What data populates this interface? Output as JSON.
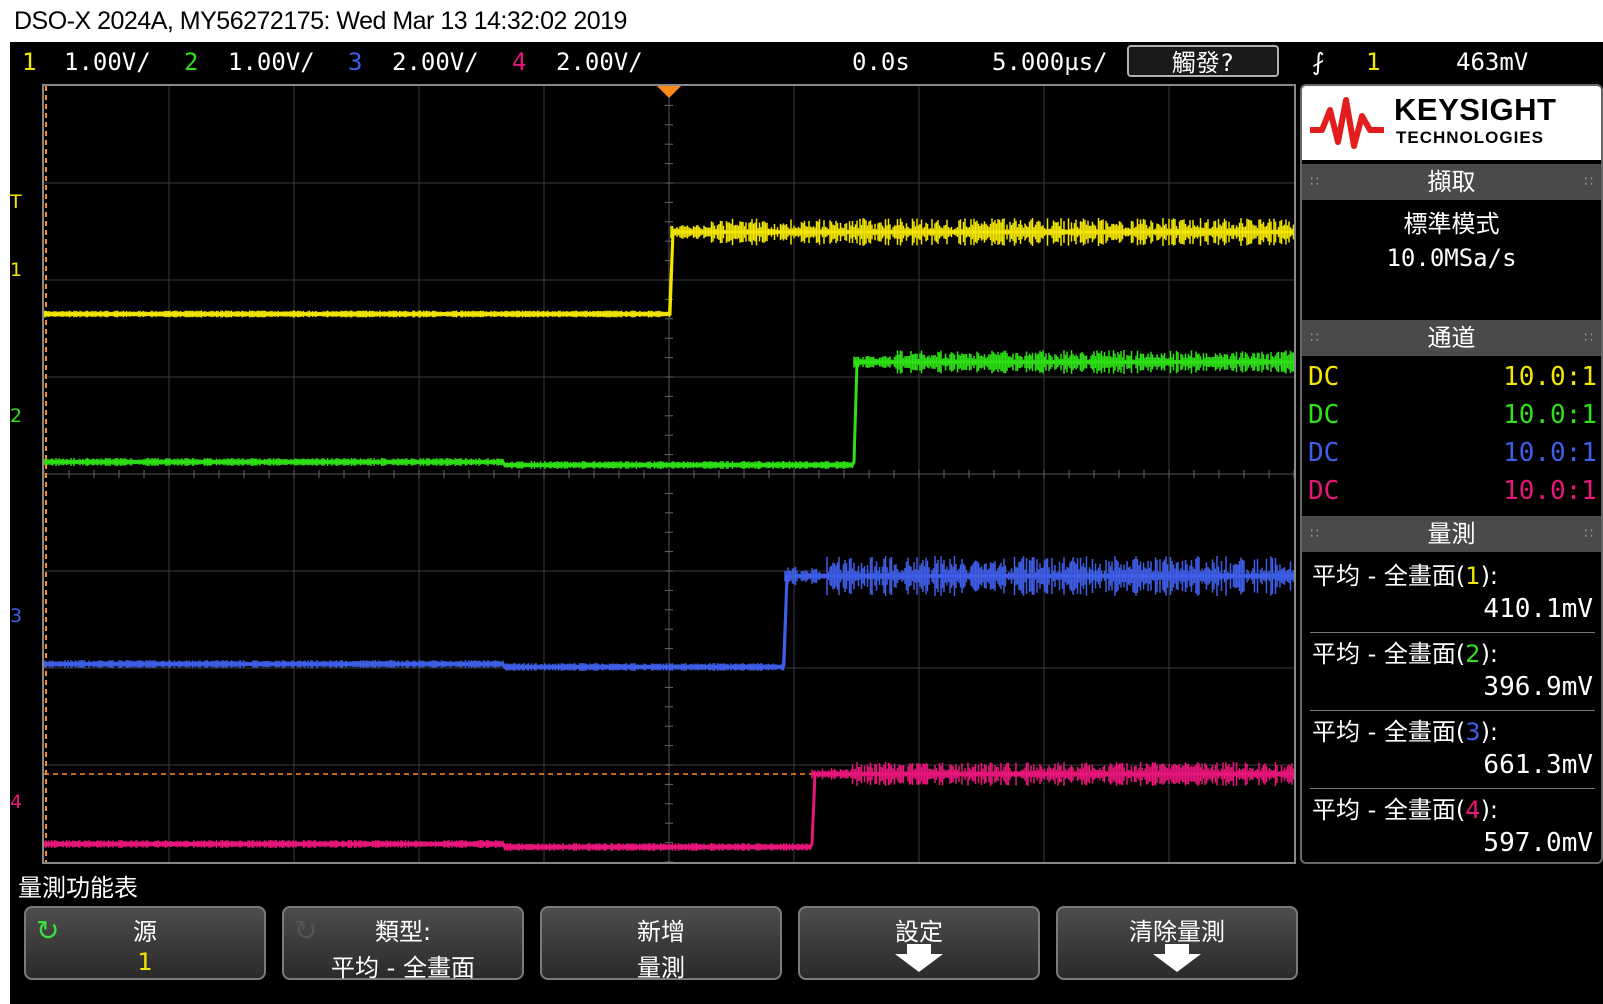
{
  "title": "DSO-X 2024A, MY56272175: Wed Mar 13 14:32:02 2019",
  "colors": {
    "ch1": "#f2e600",
    "ch2": "#2ee016",
    "ch3": "#3f5ee8",
    "ch4": "#e8157a",
    "trigger": "#ff8c1a"
  },
  "status": {
    "ch1_num": "1",
    "ch1_scale": "1.00V/",
    "ch2_num": "2",
    "ch2_scale": "1.00V/",
    "ch3_num": "3",
    "ch3_scale": "2.00V/",
    "ch4_num": "4",
    "ch4_scale": "2.00V/",
    "delay": "0.0s",
    "timebase": "5.000µs/",
    "trigger_button": "觸發?",
    "trigger_edge_icon": "rising-edge-icon",
    "trigger_source": "1",
    "trigger_level": "463mV"
  },
  "markers": {
    "trigger_level": "T",
    "ch1": "1",
    "ch2": "2",
    "ch3": "3",
    "ch4": "4"
  },
  "sidepanel": {
    "brand": "KEYSIGHT",
    "brand_sub": "TECHNOLOGIES",
    "acquire_header": "擷取",
    "acquire_mode": "標準模式",
    "sample_rate": "10.0MSa/s",
    "channels_header": "通道",
    "channels": [
      {
        "coupling": "DC",
        "probe": "10.0:1"
      },
      {
        "coupling": "DC",
        "probe": "10.0:1"
      },
      {
        "coupling": "DC",
        "probe": "10.0:1"
      },
      {
        "coupling": "DC",
        "probe": "10.0:1"
      }
    ],
    "meas_header": "量測",
    "measurements": [
      {
        "label_prefix": "平均 - 全畫面(",
        "channel": "1",
        "label_suffix": "):",
        "value": "410.1mV"
      },
      {
        "label_prefix": "平均 - 全畫面(",
        "channel": "2",
        "label_suffix": "):",
        "value": "396.9mV"
      },
      {
        "label_prefix": "平均 - 全畫面(",
        "channel": "3",
        "label_suffix": "):",
        "value": "661.3mV"
      },
      {
        "label_prefix": "平均 - 全畫面(",
        "channel": "4",
        "label_suffix": "):",
        "value": "597.0mV"
      }
    ]
  },
  "menu": {
    "title": "量測功能表",
    "softkeys": [
      {
        "line1": "源",
        "line2": "1"
      },
      {
        "line1": "類型:",
        "line2": "平均 - 全畫面"
      },
      {
        "line1": "新增",
        "line2": "量測"
      },
      {
        "line1": "設定",
        "line2": ""
      },
      {
        "line1": "清除量測",
        "line2": ""
      }
    ]
  }
}
